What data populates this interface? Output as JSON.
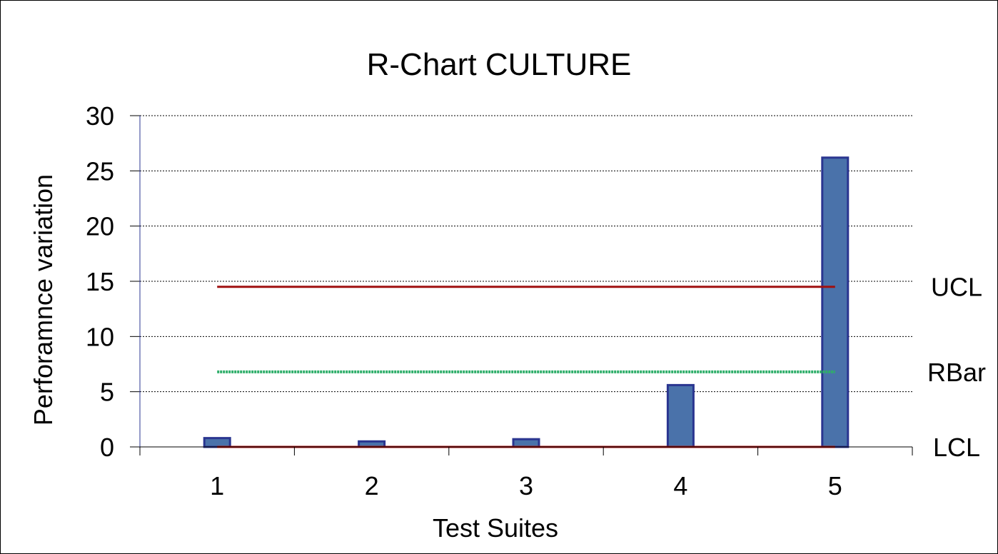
{
  "chart_data": {
    "type": "bar",
    "title": "R-Chart CULTURE",
    "xlabel": "Test Suites",
    "ylabel": "Perforamnce variation",
    "categories": [
      "1",
      "2",
      "3",
      "4",
      "5"
    ],
    "values": [
      0.8,
      0.5,
      0.7,
      5.6,
      26.2
    ],
    "ylim": [
      0,
      30
    ],
    "yticks": [
      "0",
      "5",
      "10",
      "15",
      "20",
      "25",
      "30"
    ],
    "grid": true,
    "bar_color": "#4a72aa",
    "bar_edge_color": "#2a3590",
    "lines": [
      {
        "name": "UCL",
        "value": 14.5,
        "color": "#a01010",
        "style": "solid"
      },
      {
        "name": "RBar",
        "value": 6.8,
        "color": "#2fae6a",
        "style": "dotted"
      },
      {
        "name": "LCL",
        "value": 0,
        "color": "#a01010",
        "style": "solid"
      }
    ]
  }
}
